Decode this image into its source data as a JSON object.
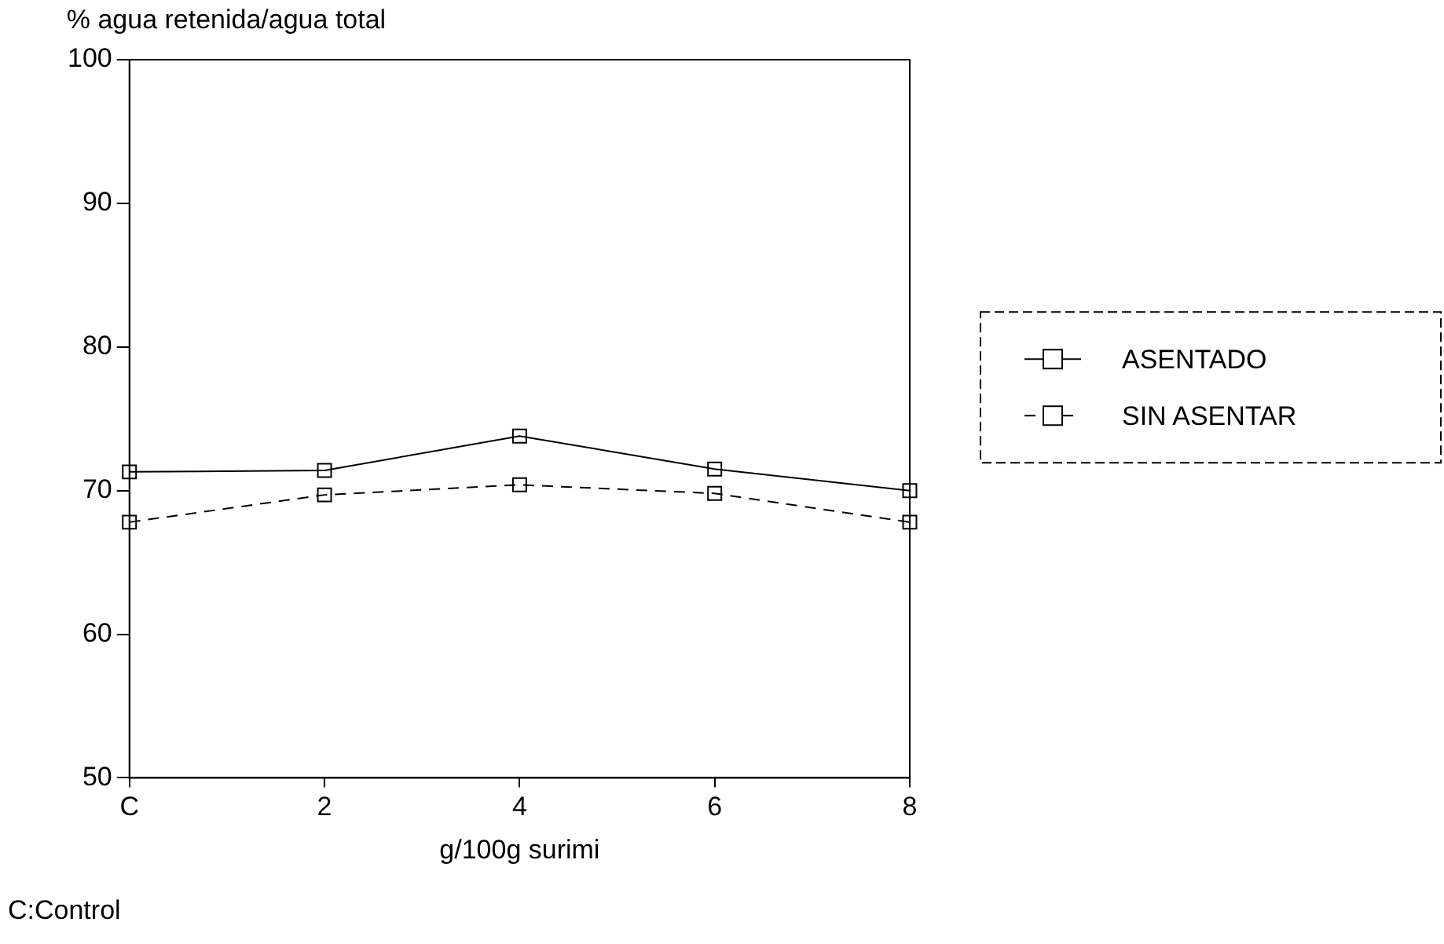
{
  "chart_data": {
    "type": "line",
    "ylabel": "% agua retenida/agua total",
    "xlabel": "g/100g surimi",
    "annotations": [
      "C:Control"
    ],
    "categories": [
      "C",
      "2",
      "4",
      "6",
      "8"
    ],
    "series": [
      {
        "name": "ASENTADO",
        "color": "#000000",
        "values": [
          71.3,
          71.4,
          73.8,
          71.5,
          70.0
        ],
        "line_style": "solid"
      },
      {
        "name": "SIN ASENTAR",
        "color": "#000000",
        "values": [
          67.8,
          69.7,
          70.4,
          69.8,
          67.8
        ],
        "line_style": "dashed"
      }
    ],
    "ylim": [
      50,
      100
    ],
    "yticks": [
      50,
      60,
      70,
      80,
      90,
      100
    ],
    "marker": "square",
    "legend": "right"
  }
}
